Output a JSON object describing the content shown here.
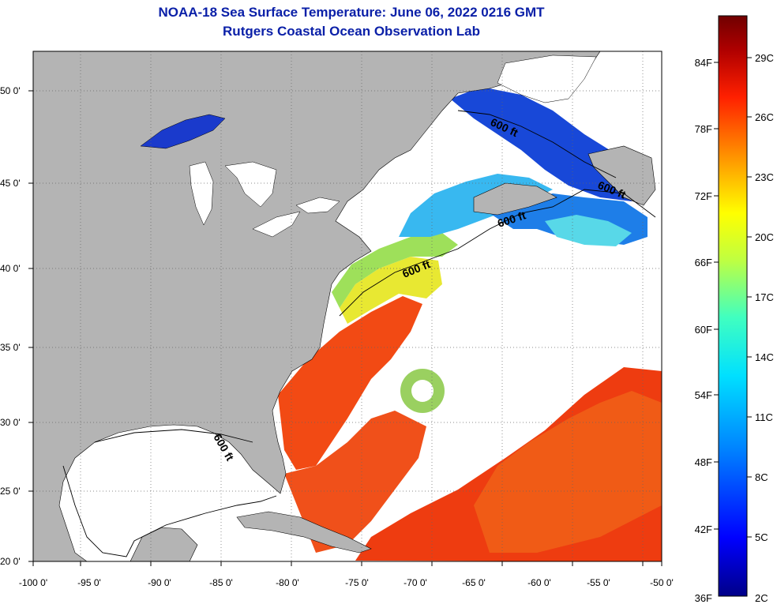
{
  "title": "NOAA-18 Sea Surface Temperature:  June 06, 2022 0216 GMT",
  "subtitle": "Rutgers Coastal Ocean Observation Lab",
  "map": {
    "lon_range": [
      -100,
      -50
    ],
    "lat_range": [
      20,
      52.5
    ],
    "lon_ticks": [
      "-100 0'",
      "-95 0'",
      "-90 0'",
      "-85 0'",
      "-80 0'",
      "-75 0'",
      "-70 0'",
      "-65 0'",
      "-60 0'",
      "-55 0'",
      "-50 0'"
    ],
    "lat_ticks": [
      "20 0'",
      "25 0'",
      "30 0'",
      "35 0'",
      "40 0'",
      "45 0'",
      "50 0'"
    ],
    "grid": "dotted",
    "land_color": "#b4b4b4",
    "cloud_color": "#ffffff",
    "contour_labels": [
      "600 ft",
      "600 ft",
      "600 ft",
      "600 ft",
      "600 ft"
    ]
  },
  "colorbar": {
    "fahrenheit_labels": [
      "84F",
      "78F",
      "72F",
      "66F",
      "60F",
      "54F",
      "48F",
      "42F",
      "36F"
    ],
    "celsius_labels": [
      "29C",
      "26C",
      "23C",
      "20C",
      "17C",
      "14C",
      "11C",
      "8C",
      "5C",
      "2C"
    ],
    "range_c": [
      2,
      31
    ],
    "colors": [
      "#000088",
      "#0000ff",
      "#0080ff",
      "#00e0ff",
      "#40ffc0",
      "#c0ff40",
      "#ffff00",
      "#ff9000",
      "#ff2000",
      "#b00000",
      "#700000"
    ]
  }
}
